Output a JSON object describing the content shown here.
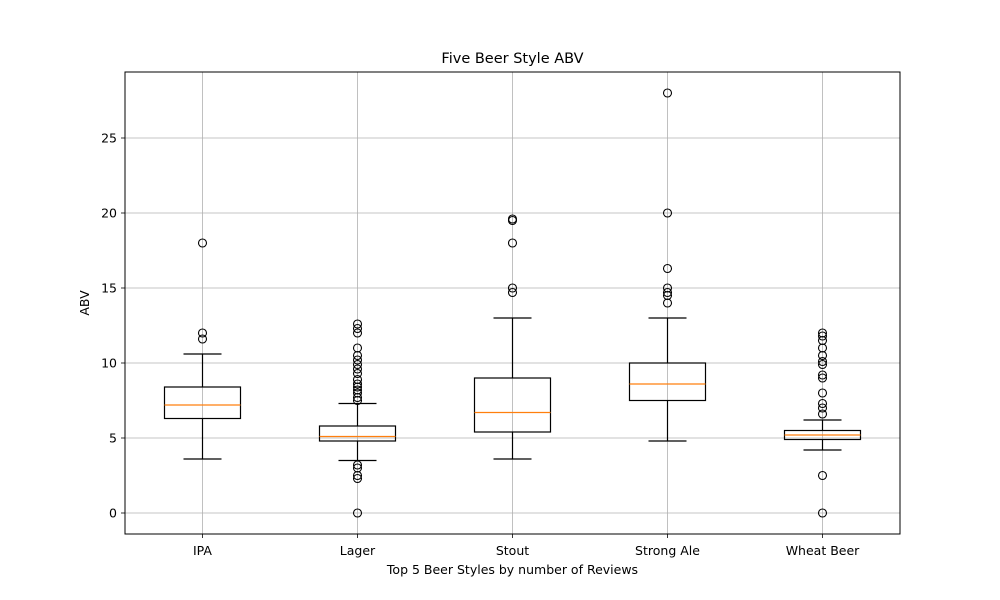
{
  "chart_data": {
    "type": "box",
    "title": "Five Beer Style ABV",
    "xlabel": "Top 5 Beer Styles by number of Reviews",
    "ylabel": "ABV",
    "ylim": [
      -1.4,
      29.4
    ],
    "yticks": [
      0,
      5,
      10,
      15,
      20,
      25
    ],
    "grid": true,
    "colors": {
      "box": "#000000",
      "median": "#ff7f0e",
      "grid": "#b0b0b0",
      "frame": "#000000"
    },
    "categories": [
      "IPA",
      "Lager",
      "Stout",
      "Strong Ale",
      "Wheat Beer"
    ],
    "boxes": [
      {
        "category": "IPA",
        "whisker_low": 3.6,
        "q1": 6.3,
        "median": 7.2,
        "q3": 8.4,
        "whisker_high": 10.6,
        "outliers": [
          11.6,
          12.0,
          18.0
        ]
      },
      {
        "category": "Lager",
        "whisker_low": 3.5,
        "q1": 4.8,
        "median": 5.1,
        "q3": 5.8,
        "whisker_high": 7.3,
        "outliers": [
          0.0,
          2.3,
          2.5,
          3.0,
          3.2,
          7.5,
          7.7,
          8.0,
          8.2,
          8.4,
          8.6,
          8.9,
          9.3,
          9.6,
          9.9,
          10.2,
          10.5,
          11.0,
          12.0,
          12.3,
          12.6
        ]
      },
      {
        "category": "Stout",
        "whisker_low": 3.6,
        "q1": 5.4,
        "median": 6.7,
        "q3": 9.0,
        "whisker_high": 13.0,
        "outliers": [
          14.7,
          15.0,
          18.0,
          19.5,
          19.6
        ]
      },
      {
        "category": "Strong Ale",
        "whisker_low": 4.8,
        "q1": 7.5,
        "median": 8.6,
        "q3": 10.0,
        "whisker_high": 13.0,
        "outliers": [
          14.0,
          14.5,
          14.7,
          15.0,
          16.3,
          20.0,
          28.0
        ]
      },
      {
        "category": "Wheat Beer",
        "whisker_low": 4.2,
        "q1": 4.9,
        "median": 5.2,
        "q3": 5.5,
        "whisker_high": 6.2,
        "outliers": [
          0.0,
          2.5,
          6.6,
          7.0,
          7.3,
          8.0,
          9.0,
          9.2,
          9.9,
          10.1,
          10.5,
          11.0,
          11.5,
          11.8,
          12.0
        ]
      }
    ]
  }
}
